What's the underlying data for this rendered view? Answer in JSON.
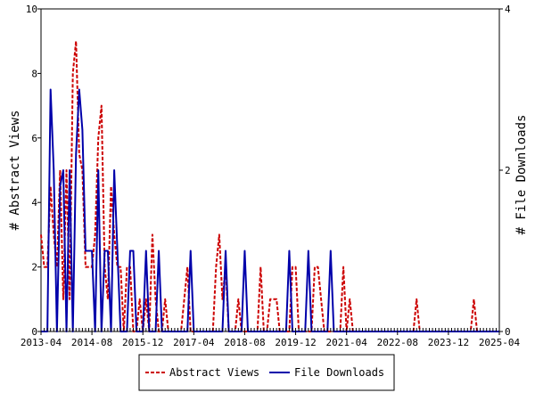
{
  "chart_data": {
    "type": "line",
    "title": "",
    "ylabel_left": "# Abstract Views",
    "ylabel_right": "# File Downloads",
    "xlabel": "",
    "x_tick_labels": [
      "2013-04",
      "2014-08",
      "2015-12",
      "2017-04",
      "2018-08",
      "2019-12",
      "2021-04",
      "2022-08",
      "2023-12",
      "2025-04"
    ],
    "x_range_months": [
      "2013-04",
      "2025-04"
    ],
    "y_left": {
      "min": 0,
      "max": 10,
      "ticks": [
        0,
        2,
        4,
        6,
        8,
        10
      ]
    },
    "y_right": {
      "min": 0,
      "max": 4,
      "ticks": [
        0,
        2,
        4
      ]
    },
    "legend_placement": "bottom-center",
    "grid": false,
    "series": [
      {
        "name": "Abstract Views",
        "axis": "left",
        "color": "#cc0000",
        "dash": true,
        "points": [
          [
            "2013-04",
            3
          ],
          [
            "2013-05",
            2
          ],
          [
            "2013-06",
            2
          ],
          [
            "2013-07",
            4.5
          ],
          [
            "2013-08",
            3
          ],
          [
            "2013-09",
            2
          ],
          [
            "2013-10",
            5
          ],
          [
            "2013-11",
            1
          ],
          [
            "2013-12",
            5
          ],
          [
            "2014-01",
            1
          ],
          [
            "2014-02",
            8
          ],
          [
            "2014-03",
            9
          ],
          [
            "2014-04",
            5.5
          ],
          [
            "2014-05",
            5
          ],
          [
            "2014-06",
            2
          ],
          [
            "2014-07",
            2
          ],
          [
            "2014-08",
            2
          ],
          [
            "2014-09",
            3
          ],
          [
            "2014-10",
            6
          ],
          [
            "2014-11",
            7
          ],
          [
            "2014-12",
            2
          ],
          [
            "2015-01",
            1
          ],
          [
            "2015-02",
            4.5
          ],
          [
            "2015-03",
            3
          ],
          [
            "2015-04",
            2
          ],
          [
            "2015-05",
            2
          ],
          [
            "2015-06",
            0
          ],
          [
            "2015-07",
            2
          ],
          [
            "2015-08",
            2
          ],
          [
            "2015-09",
            0
          ],
          [
            "2015-10",
            0
          ],
          [
            "2015-11",
            1
          ],
          [
            "2015-12",
            0
          ],
          [
            "2016-01",
            1
          ],
          [
            "2016-02",
            0
          ],
          [
            "2016-03",
            3
          ],
          [
            "2016-04",
            1
          ],
          [
            "2016-05",
            0
          ],
          [
            "2016-06",
            0
          ],
          [
            "2016-07",
            1
          ],
          [
            "2016-08",
            0
          ],
          [
            "2016-09",
            0
          ],
          [
            "2016-10",
            0
          ],
          [
            "2016-11",
            0
          ],
          [
            "2016-12",
            0
          ],
          [
            "2017-01",
            1
          ],
          [
            "2017-02",
            2
          ],
          [
            "2017-03",
            0
          ],
          [
            "2017-04",
            0
          ],
          [
            "2017-05",
            0
          ],
          [
            "2017-06",
            0
          ],
          [
            "2017-07",
            0
          ],
          [
            "2017-08",
            0
          ],
          [
            "2017-09",
            0
          ],
          [
            "2017-10",
            0
          ],
          [
            "2017-11",
            2
          ],
          [
            "2017-12",
            3
          ],
          [
            "2018-01",
            1
          ],
          [
            "2018-02",
            2
          ],
          [
            "2018-03",
            0
          ],
          [
            "2018-04",
            0
          ],
          [
            "2018-05",
            0
          ],
          [
            "2018-06",
            1
          ],
          [
            "2018-07",
            0
          ],
          [
            "2018-08",
            0
          ],
          [
            "2018-09",
            0
          ],
          [
            "2018-10",
            0
          ],
          [
            "2018-11",
            0
          ],
          [
            "2018-12",
            0
          ],
          [
            "2019-01",
            2
          ],
          [
            "2019-02",
            0
          ],
          [
            "2019-03",
            0
          ],
          [
            "2019-04",
            1
          ],
          [
            "2019-05",
            1
          ],
          [
            "2019-06",
            1
          ],
          [
            "2019-07",
            0
          ],
          [
            "2019-08",
            0
          ],
          [
            "2019-09",
            0
          ],
          [
            "2019-10",
            0
          ],
          [
            "2019-11",
            2
          ],
          [
            "2019-12",
            2
          ],
          [
            "2020-01",
            0
          ],
          [
            "2020-02",
            0
          ],
          [
            "2020-03",
            0
          ],
          [
            "2020-04",
            0
          ],
          [
            "2020-05",
            0
          ],
          [
            "2020-06",
            2
          ],
          [
            "2020-07",
            2
          ],
          [
            "2020-08",
            1
          ],
          [
            "2020-09",
            0
          ],
          [
            "2020-10",
            0
          ],
          [
            "2020-11",
            0
          ],
          [
            "2020-12",
            0
          ],
          [
            "2021-01",
            0
          ],
          [
            "2021-02",
            0
          ],
          [
            "2021-03",
            2
          ],
          [
            "2021-04",
            0
          ],
          [
            "2021-05",
            1
          ],
          [
            "2021-06",
            0
          ],
          [
            "2021-07",
            0
          ],
          [
            "2021-08",
            0
          ],
          [
            "2021-09",
            0
          ],
          [
            "2021-10",
            0
          ],
          [
            "2021-11",
            0
          ],
          [
            "2021-12",
            0
          ],
          [
            "2022-01",
            0
          ],
          [
            "2022-02",
            0
          ],
          [
            "2022-03",
            0
          ],
          [
            "2022-04",
            0
          ],
          [
            "2022-05",
            0
          ],
          [
            "2022-06",
            0
          ],
          [
            "2022-07",
            0
          ],
          [
            "2022-08",
            0
          ],
          [
            "2022-09",
            0
          ],
          [
            "2022-10",
            0
          ],
          [
            "2022-11",
            0
          ],
          [
            "2022-12",
            0
          ],
          [
            "2023-01",
            0
          ],
          [
            "2023-02",
            1
          ],
          [
            "2023-03",
            0
          ],
          [
            "2023-04",
            0
          ],
          [
            "2023-05",
            0
          ],
          [
            "2023-06",
            0
          ],
          [
            "2023-07",
            0
          ],
          [
            "2023-08",
            0
          ],
          [
            "2023-09",
            0
          ],
          [
            "2023-10",
            0
          ],
          [
            "2023-11",
            0
          ],
          [
            "2023-12",
            0
          ],
          [
            "2024-01",
            0
          ],
          [
            "2024-02",
            0
          ],
          [
            "2024-03",
            0
          ],
          [
            "2024-04",
            0
          ],
          [
            "2024-05",
            0
          ],
          [
            "2024-06",
            0
          ],
          [
            "2024-07",
            0
          ],
          [
            "2024-08",
            1
          ],
          [
            "2024-09",
            0
          ],
          [
            "2024-10",
            0
          ],
          [
            "2024-11",
            0
          ],
          [
            "2024-12",
            0
          ],
          [
            "2025-01",
            0
          ],
          [
            "2025-02",
            0
          ],
          [
            "2025-03",
            0
          ],
          [
            "2025-04",
            0
          ]
        ]
      },
      {
        "name": "File Downloads",
        "axis": "right",
        "color": "#0000aa",
        "dash": false,
        "points": [
          [
            "2013-04",
            0
          ],
          [
            "2013-05",
            0
          ],
          [
            "2013-06",
            0
          ],
          [
            "2013-07",
            3
          ],
          [
            "2013-08",
            2
          ],
          [
            "2013-09",
            0
          ],
          [
            "2013-10",
            1.8
          ],
          [
            "2013-11",
            2
          ],
          [
            "2013-12",
            0
          ],
          [
            "2014-01",
            2
          ],
          [
            "2014-02",
            0
          ],
          [
            "2014-03",
            2.2
          ],
          [
            "2014-04",
            3
          ],
          [
            "2014-05",
            2.5
          ],
          [
            "2014-06",
            1
          ],
          [
            "2014-07",
            1
          ],
          [
            "2014-08",
            1
          ],
          [
            "2014-09",
            0
          ],
          [
            "2014-10",
            2
          ],
          [
            "2014-11",
            0
          ],
          [
            "2014-12",
            1
          ],
          [
            "2015-01",
            1
          ],
          [
            "2015-02",
            0
          ],
          [
            "2015-03",
            2
          ],
          [
            "2015-04",
            1
          ],
          [
            "2015-05",
            0
          ],
          [
            "2015-06",
            0
          ],
          [
            "2015-07",
            0
          ],
          [
            "2015-08",
            1
          ],
          [
            "2015-09",
            1
          ],
          [
            "2015-10",
            0
          ],
          [
            "2015-11",
            0
          ],
          [
            "2015-12",
            0
          ],
          [
            "2016-01",
            1
          ],
          [
            "2016-02",
            0
          ],
          [
            "2016-03",
            0
          ],
          [
            "2016-04",
            0
          ],
          [
            "2016-05",
            1
          ],
          [
            "2016-06",
            0
          ],
          [
            "2016-07",
            0
          ],
          [
            "2016-08",
            0
          ],
          [
            "2016-09",
            0
          ],
          [
            "2016-10",
            0
          ],
          [
            "2016-11",
            0
          ],
          [
            "2016-12",
            0
          ],
          [
            "2017-01",
            0
          ],
          [
            "2017-02",
            0
          ],
          [
            "2017-03",
            1
          ],
          [
            "2017-04",
            0
          ],
          [
            "2017-05",
            0
          ],
          [
            "2017-06",
            0
          ],
          [
            "2017-07",
            0
          ],
          [
            "2017-08",
            0
          ],
          [
            "2017-09",
            0
          ],
          [
            "2017-10",
            0
          ],
          [
            "2017-11",
            0
          ],
          [
            "2017-12",
            0
          ],
          [
            "2018-01",
            0
          ],
          [
            "2018-02",
            1
          ],
          [
            "2018-03",
            0
          ],
          [
            "2018-04",
            0
          ],
          [
            "2018-05",
            0
          ],
          [
            "2018-06",
            0
          ],
          [
            "2018-07",
            0
          ],
          [
            "2018-08",
            1
          ],
          [
            "2018-09",
            0
          ],
          [
            "2018-10",
            0
          ],
          [
            "2018-11",
            0
          ],
          [
            "2018-12",
            0
          ],
          [
            "2019-01",
            0
          ],
          [
            "2019-02",
            0
          ],
          [
            "2019-03",
            0
          ],
          [
            "2019-04",
            0
          ],
          [
            "2019-05",
            0
          ],
          [
            "2019-06",
            0
          ],
          [
            "2019-07",
            0
          ],
          [
            "2019-08",
            0
          ],
          [
            "2019-09",
            0
          ],
          [
            "2019-10",
            1
          ],
          [
            "2019-11",
            0
          ],
          [
            "2019-12",
            0
          ],
          [
            "2020-01",
            0
          ],
          [
            "2020-02",
            0
          ],
          [
            "2020-03",
            0
          ],
          [
            "2020-04",
            1
          ],
          [
            "2020-05",
            0
          ],
          [
            "2020-06",
            0
          ],
          [
            "2020-07",
            0
          ],
          [
            "2020-08",
            0
          ],
          [
            "2020-09",
            0
          ],
          [
            "2020-10",
            0
          ],
          [
            "2020-11",
            1
          ],
          [
            "2020-12",
            0
          ],
          [
            "2021-01",
            0
          ],
          [
            "2021-02",
            0
          ],
          [
            "2021-03",
            0
          ],
          [
            "2021-04",
            0
          ],
          [
            "2021-05",
            0
          ],
          [
            "2021-06",
            0
          ],
          [
            "2021-07",
            0
          ],
          [
            "2021-08",
            0
          ],
          [
            "2021-09",
            0
          ],
          [
            "2021-10",
            0
          ],
          [
            "2021-11",
            0
          ],
          [
            "2021-12",
            0
          ],
          [
            "2022-01",
            0
          ],
          [
            "2022-02",
            0
          ],
          [
            "2022-03",
            0
          ],
          [
            "2022-04",
            0
          ],
          [
            "2022-05",
            0
          ],
          [
            "2022-06",
            0
          ],
          [
            "2022-07",
            0
          ],
          [
            "2022-08",
            0
          ],
          [
            "2022-09",
            0
          ],
          [
            "2022-10",
            0
          ],
          [
            "2022-11",
            0
          ],
          [
            "2022-12",
            0
          ],
          [
            "2023-01",
            0
          ],
          [
            "2023-02",
            0
          ],
          [
            "2023-03",
            0
          ],
          [
            "2023-04",
            0
          ],
          [
            "2023-05",
            0
          ],
          [
            "2023-06",
            0
          ],
          [
            "2023-07",
            0
          ],
          [
            "2023-08",
            0
          ],
          [
            "2023-09",
            0
          ],
          [
            "2023-10",
            0
          ],
          [
            "2023-11",
            0
          ],
          [
            "2023-12",
            0
          ],
          [
            "2024-01",
            0
          ],
          [
            "2024-02",
            0
          ],
          [
            "2024-03",
            0
          ],
          [
            "2024-04",
            0
          ],
          [
            "2024-05",
            0
          ],
          [
            "2024-06",
            0
          ],
          [
            "2024-07",
            0
          ],
          [
            "2024-08",
            0
          ],
          [
            "2024-09",
            0
          ],
          [
            "2024-10",
            0
          ],
          [
            "2024-11",
            0
          ],
          [
            "2024-12",
            0
          ],
          [
            "2025-01",
            0
          ],
          [
            "2025-02",
            0
          ],
          [
            "2025-03",
            0
          ],
          [
            "2025-04",
            0
          ]
        ]
      }
    ]
  }
}
